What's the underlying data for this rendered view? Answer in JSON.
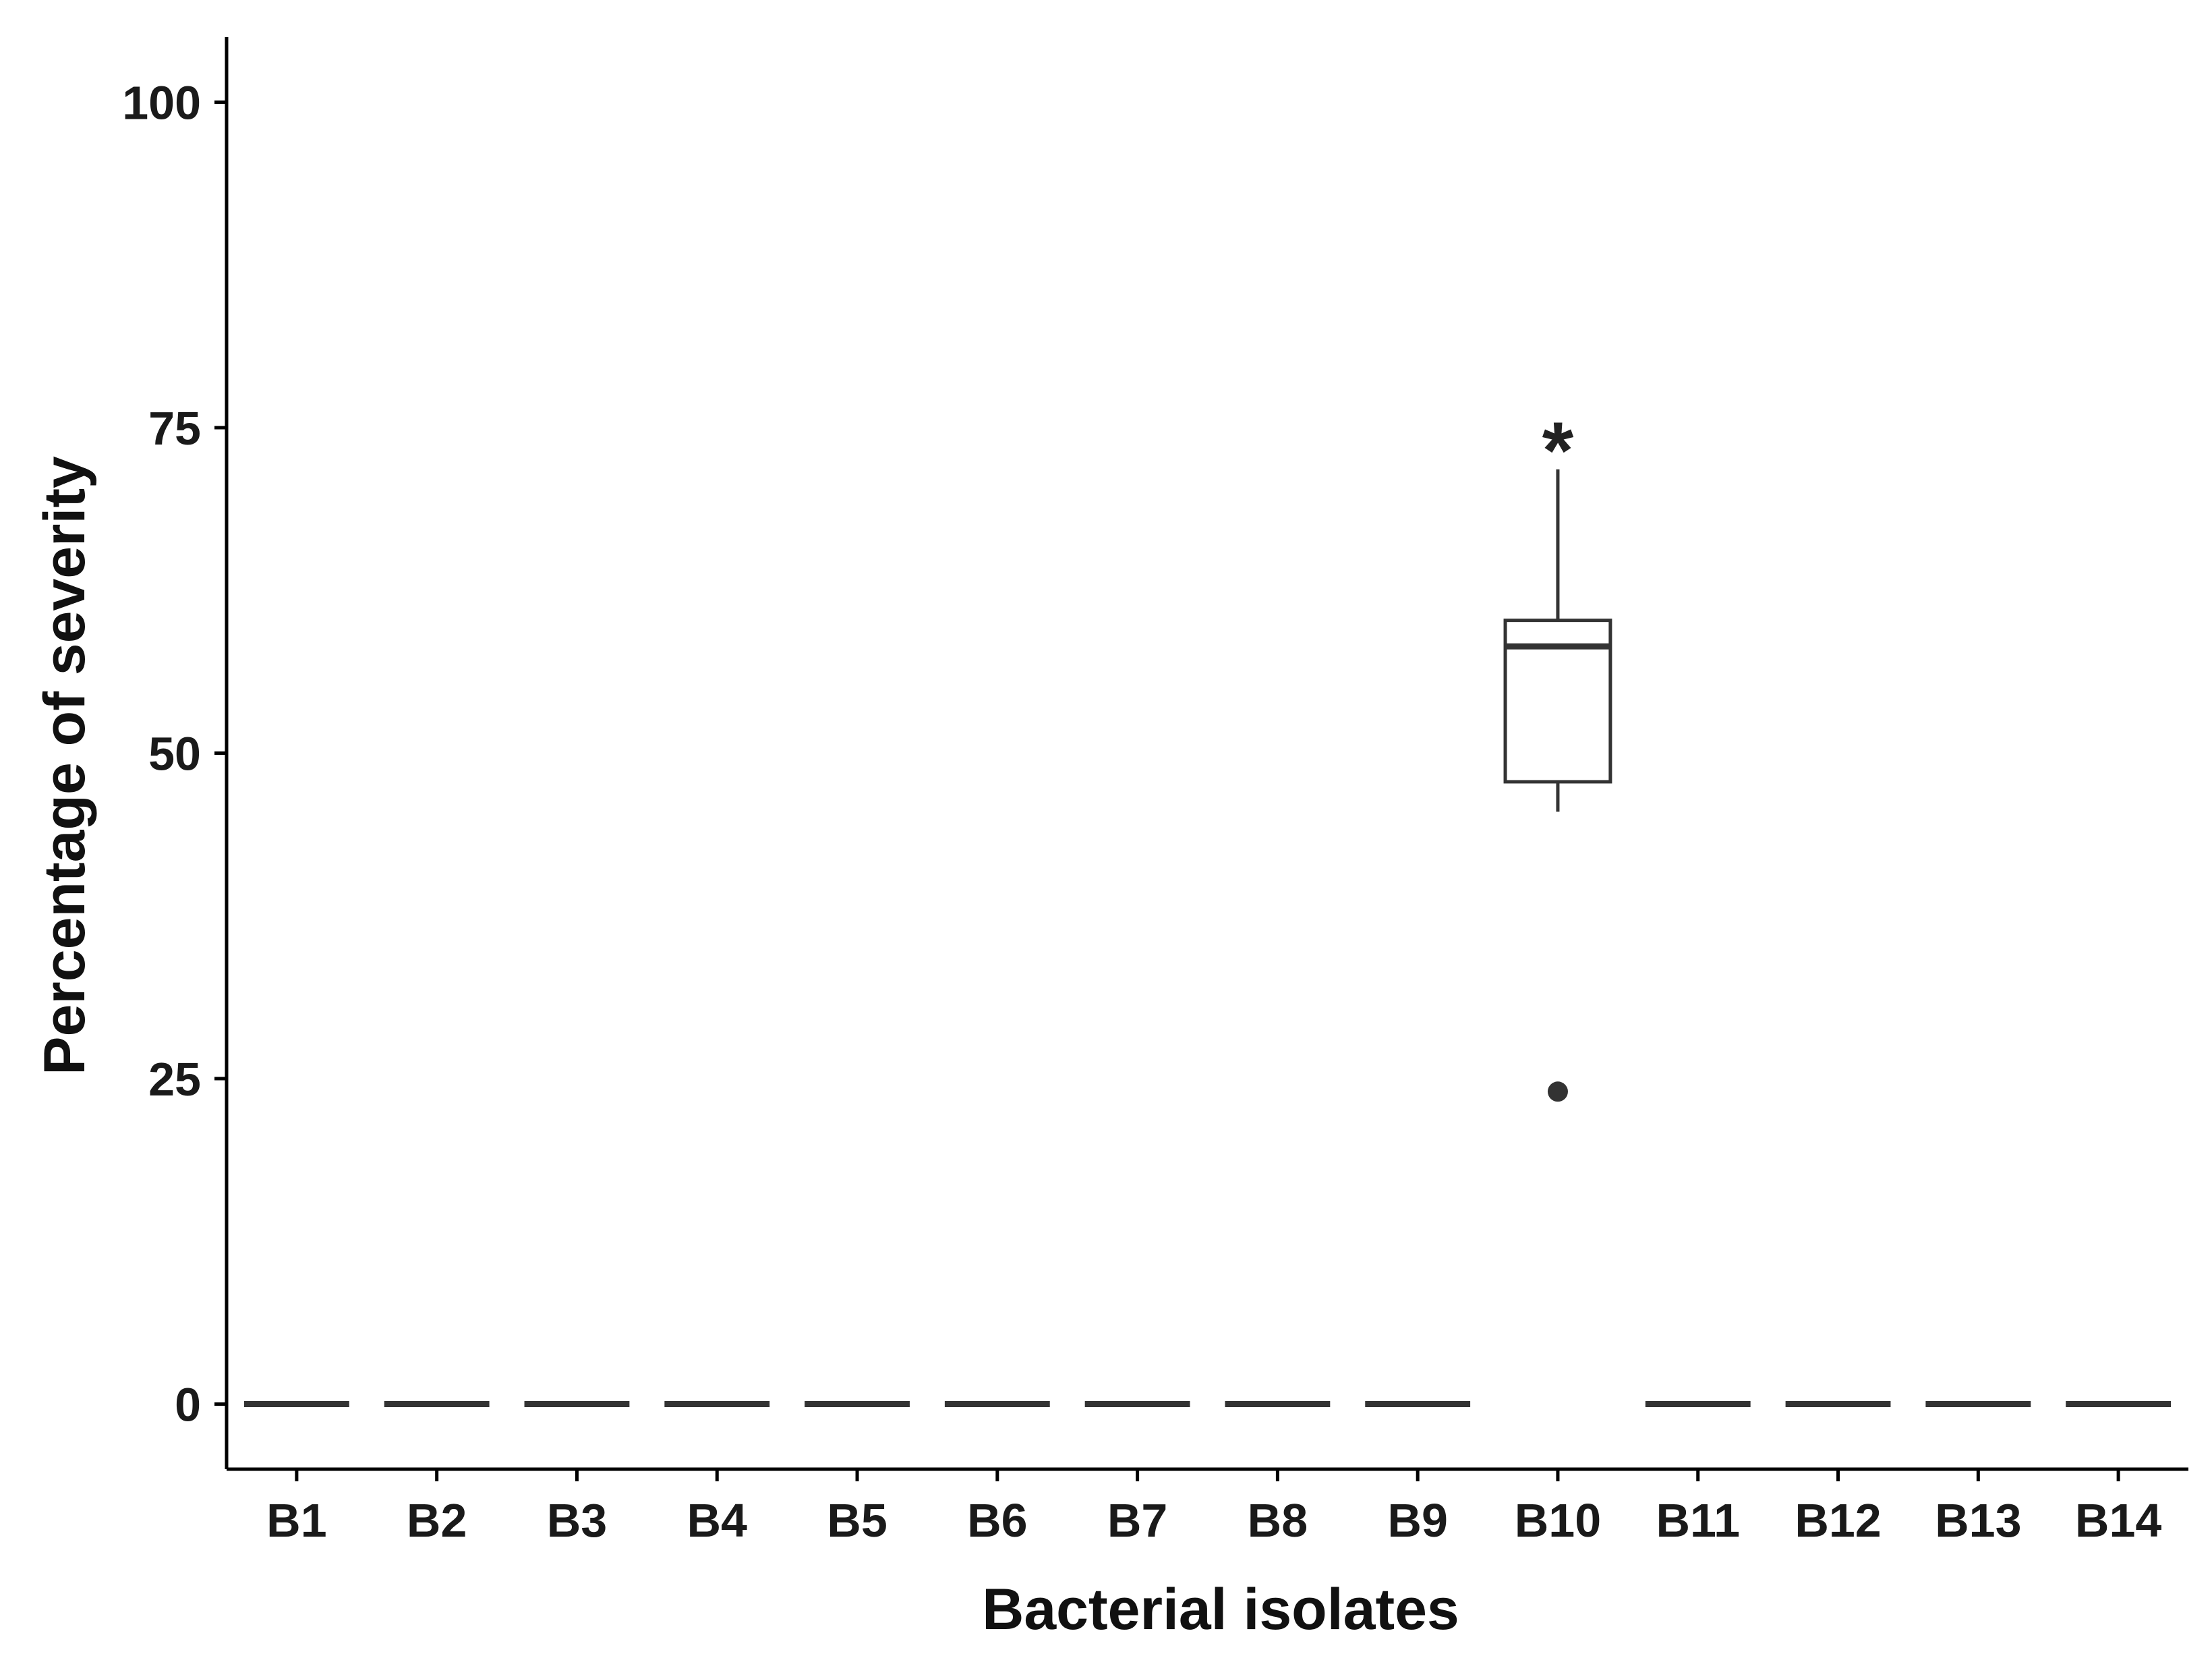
{
  "chart_data": {
    "type": "box",
    "xlabel": "Bacterial isolates",
    "ylabel": "Percentage of severity",
    "ylim": [
      -5,
      105
    ],
    "yticks": [
      0,
      25,
      50,
      75,
      100
    ],
    "grid": false,
    "categories": [
      "B1",
      "B2",
      "B3",
      "B4",
      "B5",
      "B6",
      "B7",
      "B8",
      "B9",
      "B10",
      "B11",
      "B12",
      "B13",
      "B14"
    ],
    "boxes": [
      {
        "category": "B1",
        "whisker_low": 0,
        "q1": 0,
        "median": 0,
        "q3": 0,
        "whisker_high": 0,
        "outliers": []
      },
      {
        "category": "B2",
        "whisker_low": 0,
        "q1": 0,
        "median": 0,
        "q3": 0,
        "whisker_high": 0,
        "outliers": []
      },
      {
        "category": "B3",
        "whisker_low": 0,
        "q1": 0,
        "median": 0,
        "q3": 0,
        "whisker_high": 0,
        "outliers": []
      },
      {
        "category": "B4",
        "whisker_low": 0,
        "q1": 0,
        "median": 0,
        "q3": 0,
        "whisker_high": 0,
        "outliers": []
      },
      {
        "category": "B5",
        "whisker_low": 0,
        "q1": 0,
        "median": 0,
        "q3": 0,
        "whisker_high": 0,
        "outliers": []
      },
      {
        "category": "B6",
        "whisker_low": 0,
        "q1": 0,
        "median": 0,
        "q3": 0,
        "whisker_high": 0,
        "outliers": []
      },
      {
        "category": "B7",
        "whisker_low": 0,
        "q1": 0,
        "median": 0,
        "q3": 0,
        "whisker_high": 0,
        "outliers": []
      },
      {
        "category": "B8",
        "whisker_low": 0,
        "q1": 0,
        "median": 0,
        "q3": 0,
        "whisker_high": 0,
        "outliers": []
      },
      {
        "category": "B9",
        "whisker_low": 0,
        "q1": 0,
        "median": 0,
        "q3": 0,
        "whisker_high": 0,
        "outliers": []
      },
      {
        "category": "B10",
        "whisker_low": 45.5,
        "q1": 47.8,
        "median": 58.2,
        "q3": 60.2,
        "whisker_high": 71.8,
        "outliers": [
          24
        ]
      },
      {
        "category": "B11",
        "whisker_low": 0,
        "q1": 0,
        "median": 0,
        "q3": 0,
        "whisker_high": 0,
        "outliers": []
      },
      {
        "category": "B12",
        "whisker_low": 0,
        "q1": 0,
        "median": 0,
        "q3": 0,
        "whisker_high": 0,
        "outliers": []
      },
      {
        "category": "B13",
        "whisker_low": 0,
        "q1": 0,
        "median": 0,
        "q3": 0,
        "whisker_high": 0,
        "outliers": []
      },
      {
        "category": "B14",
        "whisker_low": 0,
        "q1": 0,
        "median": 0,
        "q3": 0,
        "whisker_high": 0,
        "outliers": []
      }
    ],
    "annotations": [
      {
        "category": "B10",
        "text": "*",
        "y": 75
      }
    ],
    "colors": {
      "box_fill": "#ffffff",
      "line": "#333333",
      "axis": "#000000",
      "text": "#1a1a1a"
    }
  }
}
